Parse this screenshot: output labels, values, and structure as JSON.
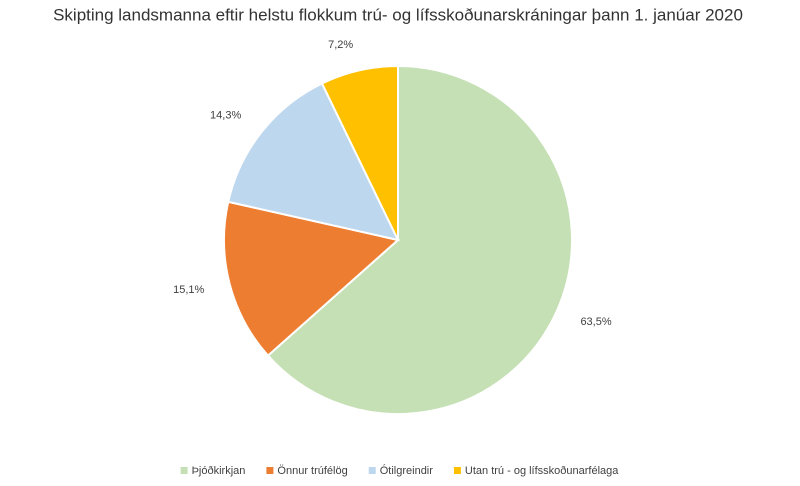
{
  "chart_data": {
    "type": "pie",
    "title": "Skipting landsmanna eftir helstu flokkum trú- og lífsskoðunarskráningar þann 1. janúar 2020",
    "categories": [
      "Þjóðkirkjan",
      "Önnur trúfélög",
      "Ótilgreindir",
      "Utan trú - og lífsskoðunarfélaga"
    ],
    "values": [
      63.5,
      15.1,
      14.3,
      7.2
    ],
    "value_labels": [
      "63,5%",
      "15,1%",
      "14,3%",
      "7,2%"
    ],
    "colors": [
      "#c5e0b4",
      "#ed7d31",
      "#bdd7ee",
      "#ffc000"
    ],
    "legend": "bottom"
  }
}
